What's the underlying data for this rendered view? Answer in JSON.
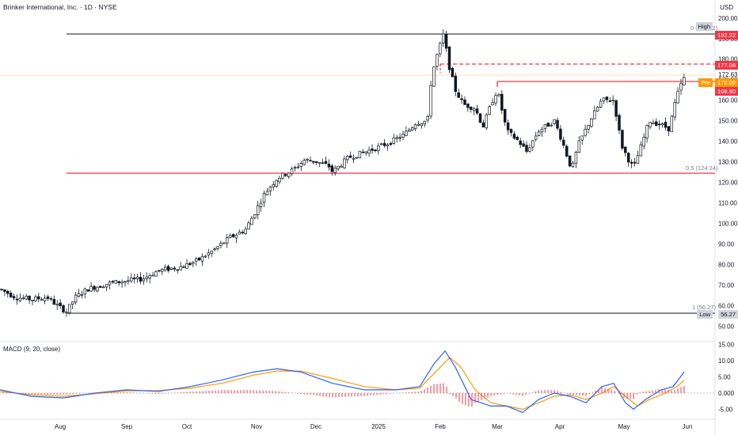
{
  "header": {
    "title": "Brinker International, Inc. · 1D · NYSE"
  },
  "currency": "USD",
  "price_axis": {
    "ticks": [
      "200.00",
      "192.22",
      "190.00",
      "180.00",
      "172.63",
      "170.00",
      "160.00",
      "150.00",
      "140.00",
      "130.00",
      "120.00",
      "110.00",
      "100.00",
      "90.00",
      "80.00",
      "70.00",
      "60.00",
      "56.27",
      "50.00"
    ]
  },
  "macd_axis": {
    "ticks": [
      "15.00",
      "10.00",
      "5.00",
      "0.000",
      "-5.00"
    ]
  },
  "time_axis": {
    "labels": [
      "Aug",
      "Sep",
      "Oct",
      "Nov",
      "Dec",
      "2025",
      "Feb",
      "Mar",
      "Apr",
      "May",
      "Jun"
    ]
  },
  "tags": {
    "high_label": "High",
    "high_value": "192.22",
    "level_177": "177.08",
    "pre_label": "Pre",
    "pre_value": "172.00",
    "last_value": "168.90",
    "low_label": "Low",
    "low_value": "56.27"
  },
  "fib": {
    "top": "0 (192.22)",
    "mid": "0.5 (124.24)",
    "bottom": "1 (56.27)"
  },
  "macd": {
    "title": "MACD (9, 20, close)"
  },
  "colors": {
    "candle": "#131722",
    "red_line": "#f23645",
    "orange": "#ff9800",
    "blue": "#2962ff",
    "hist": "#f23645"
  },
  "chart_data": {
    "type": "candlestick",
    "ylim": [
      50,
      200
    ],
    "price_path": [
      [
        "Jul",
        68
      ],
      [
        "Jul",
        64
      ],
      [
        "Aug",
        57
      ],
      [
        "Aug",
        62
      ],
      [
        "Aug",
        68
      ],
      [
        "Sep",
        70
      ],
      [
        "Sep",
        72
      ],
      [
        "Oct",
        76
      ],
      [
        "Oct",
        78
      ],
      [
        "Oct",
        84
      ],
      [
        "Nov",
        92
      ],
      [
        "Nov",
        105
      ],
      [
        "Nov",
        118
      ],
      [
        "Dec",
        128
      ],
      [
        "Dec",
        131
      ],
      [
        "Dec",
        126
      ],
      [
        "2025",
        133
      ],
      [
        "2025",
        138
      ],
      [
        "Jan",
        150
      ],
      [
        "Feb",
        192
      ],
      [
        "Feb",
        165
      ],
      [
        "Feb",
        158
      ],
      [
        "Mar",
        145
      ],
      [
        "Mar",
        135
      ],
      [
        "Mar",
        155
      ],
      [
        "Apr",
        124
      ],
      [
        "Apr",
        150
      ],
      [
        "Apr",
        162
      ],
      [
        "May",
        126
      ],
      [
        "May",
        145
      ],
      [
        "May",
        158
      ],
      [
        "Jun",
        172
      ]
    ],
    "levels": {
      "high": 192.22,
      "mid": 124.24,
      "low": 56.27,
      "pre": 172.0,
      "last": 168.9,
      "dashed": 177.08
    }
  }
}
